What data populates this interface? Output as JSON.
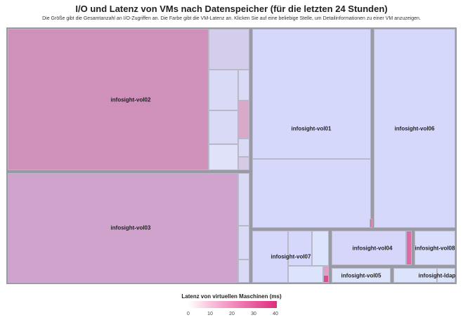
{
  "title": "I/O und Latenz von VMs nach Datenspeicher (für die letzten 24 Stunden)",
  "subtitle": "Die Größe gibt die Gesamtanzahl an I/O-Zugriffen an. Die Farbe gibt die VM-Latenz an. Klicken Sie auf eine beliebige Stelle, um Detailinformationen zu einer VM anzuzeigen.",
  "legend": {
    "title": "Latenz von virtuellen Maschinen (ms)",
    "ticks": [
      "0",
      "10",
      "20",
      "30",
      "40"
    ],
    "colors": [
      "#ffffff",
      "#f9c3dd",
      "#f28cbd",
      "#e95a9d",
      "#dd2e7d"
    ]
  },
  "chart_data": {
    "type": "treemap",
    "title": "I/O und Latenz von VMs nach Datenspeicher (für die letzten 24 Stunden)",
    "size_measure": "Gesamtanzahl I/O-Zugriffe",
    "color_measure": "Latenz von virtuellen Maschinen (ms)",
    "color_range": [
      0,
      40
    ],
    "groups": [
      {
        "name": "infosight-vol02",
        "latency_ms": 34
      },
      {
        "name": "infosight-vol03",
        "latency_ms": 26
      },
      {
        "name": "infosight-vol01",
        "latency_ms": 4
      },
      {
        "name": "infosight-vol06",
        "latency_ms": 4
      },
      {
        "name": "infosight-vol07",
        "latency_ms": 4
      },
      {
        "name": "infosight-vol04",
        "latency_ms": 7
      },
      {
        "name": "infosight-vol08",
        "latency_ms": 3
      },
      {
        "name": "infosight-vol05",
        "latency_ms": 3
      },
      {
        "name": "infosight-ldap",
        "latency_ms": 3
      }
    ]
  }
}
